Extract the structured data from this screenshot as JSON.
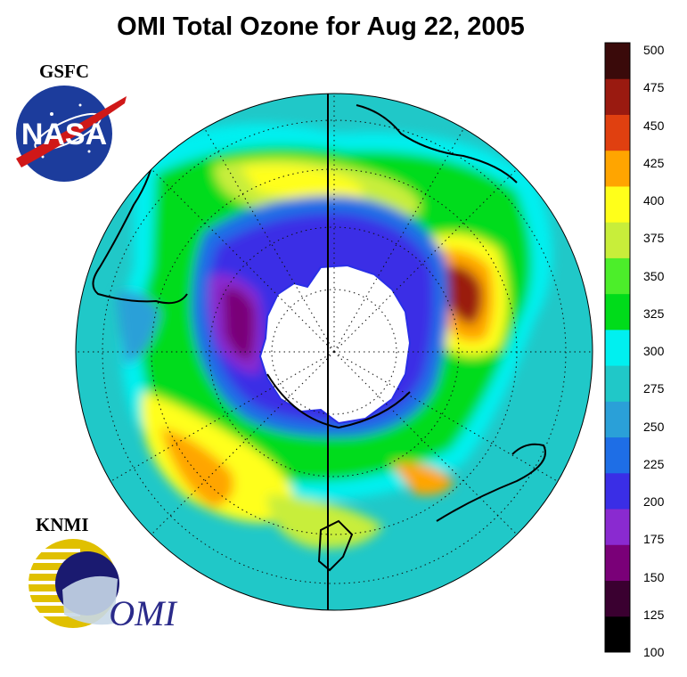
{
  "title": "OMI Total Ozone for Aug 22, 2005",
  "logos": {
    "gsfc_label": "GSFC",
    "nasa_text": "NASA",
    "knmi_label": "KNMI",
    "omi_text": "OMI"
  },
  "colorbar": {
    "ticks": [
      "100",
      "125",
      "150",
      "175",
      "200",
      "225",
      "250",
      "275",
      "300",
      "325",
      "350",
      "375",
      "400",
      "425",
      "450",
      "475",
      "500"
    ],
    "bands": [
      {
        "min": 100,
        "max": 125,
        "color": "#000000"
      },
      {
        "min": 125,
        "max": 150,
        "color": "#3a0030"
      },
      {
        "min": 150,
        "max": 175,
        "color": "#7a0078"
      },
      {
        "min": 175,
        "max": 200,
        "color": "#8a2ad0"
      },
      {
        "min": 200,
        "max": 225,
        "color": "#3a2ee6"
      },
      {
        "min": 225,
        "max": 250,
        "color": "#1e6ee6"
      },
      {
        "min": 250,
        "max": 275,
        "color": "#2aa0d8"
      },
      {
        "min": 275,
        "max": 300,
        "color": "#20c8c8"
      },
      {
        "min": 300,
        "max": 325,
        "color": "#00f0f0"
      },
      {
        "min": 325,
        "max": 350,
        "color": "#00dc1a"
      },
      {
        "min": 350,
        "max": 375,
        "color": "#4cee2a"
      },
      {
        "min": 375,
        "max": 400,
        "color": "#c8ee3a"
      },
      {
        "min": 400,
        "max": 425,
        "color": "#ffff1a"
      },
      {
        "min": 425,
        "max": 450,
        "color": "#ffa500"
      },
      {
        "min": 450,
        "max": 475,
        "color": "#e04010"
      },
      {
        "min": 475,
        "max": 500,
        "color": "#9a1a10"
      },
      {
        "min": 500,
        "max": 525,
        "color": "#3a0a0a"
      }
    ]
  },
  "map": {
    "projection": "south-polar-orthographic",
    "antarctica_color": "#ffffff",
    "ozone_hole_min": 150,
    "background_ring_value": 275
  }
}
